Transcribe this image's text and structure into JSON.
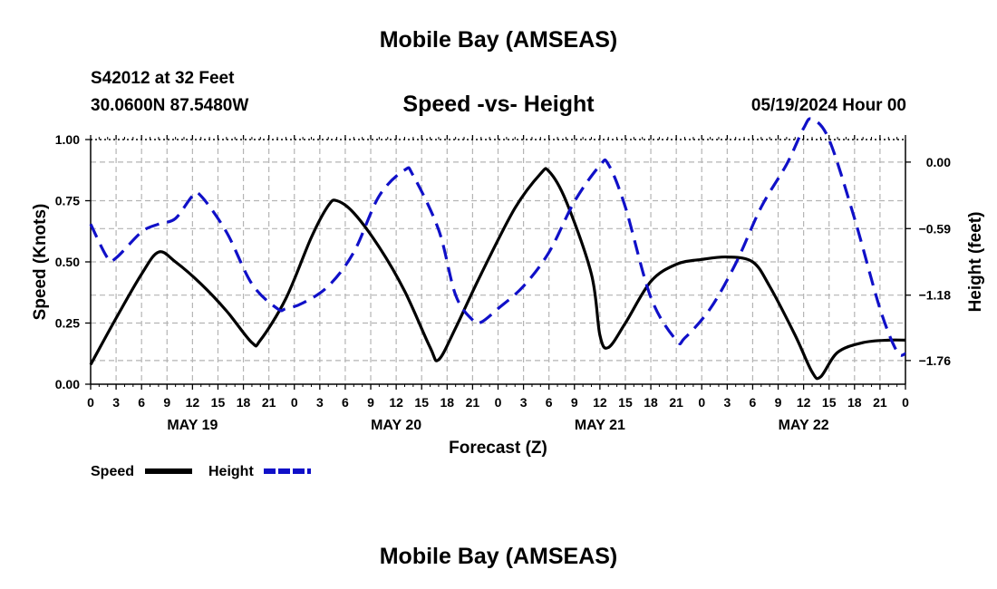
{
  "header": {
    "title": "Mobile Bay (AMSEAS)",
    "station": "S42012 at 32 Feet",
    "coords": "30.0600N  87.5480W",
    "subtitle": "Speed -vs- Height",
    "datetime": "05/19/2024 Hour 00"
  },
  "footer": {
    "title": "Mobile Bay (AMSEAS)"
  },
  "colors": {
    "speed": "#000000",
    "height": "#1010c8",
    "grid": "#b4b4b4"
  },
  "chart_data": {
    "type": "line",
    "title": "Speed -vs- Height",
    "xlabel": "Forecast (Z)",
    "ylabel": "Speed (Knots)",
    "y2label": "Height (feet)",
    "x_range": [
      0,
      96
    ],
    "ylim": [
      0,
      1
    ],
    "y2lim": [
      -1.97,
      0.2
    ],
    "y_ticks": [
      0,
      0.25,
      0.5,
      0.75,
      1.0
    ],
    "y_tick_labels": [
      "0.00",
      "0.25",
      "0.50",
      "0.75",
      "1.00"
    ],
    "y2_ticks": [
      0.0,
      -0.59,
      -1.18,
      -1.76
    ],
    "y2_tick_labels": [
      "0.00",
      "−0.59",
      "−1.18",
      "−1.76"
    ],
    "x_ticks": [
      0,
      3,
      6,
      9,
      12,
      15,
      18,
      21,
      24,
      27,
      30,
      33,
      36,
      39,
      42,
      45,
      48,
      51,
      54,
      57,
      60,
      63,
      66,
      69,
      72,
      75,
      78,
      81,
      84,
      87,
      90,
      93,
      96
    ],
    "x_tick_labels": [
      "0",
      "3",
      "6",
      "9",
      "12",
      "15",
      "18",
      "21",
      "0",
      "3",
      "6",
      "9",
      "12",
      "15",
      "18",
      "21",
      "0",
      "3",
      "6",
      "9",
      "12",
      "15",
      "18",
      "21",
      "0",
      "3",
      "6",
      "9",
      "12",
      "15",
      "18",
      "21",
      "0"
    ],
    "day_labels": [
      {
        "x": 12,
        "label": "MAY 19"
      },
      {
        "x": 36,
        "label": "MAY 20"
      },
      {
        "x": 60,
        "label": "MAY 21"
      },
      {
        "x": 84,
        "label": "MAY 22"
      }
    ],
    "legend": [
      {
        "name": "Speed",
        "style": "solid"
      },
      {
        "name": "Height",
        "style": "dashed"
      }
    ],
    "series": [
      {
        "name": "Speed",
        "axis": "left",
        "style": "solid",
        "points": [
          [
            0,
            0.08
          ],
          [
            3,
            0.27
          ],
          [
            6,
            0.45
          ],
          [
            8,
            0.54
          ],
          [
            10,
            0.5
          ],
          [
            13,
            0.41
          ],
          [
            16,
            0.3
          ],
          [
            19,
            0.17
          ],
          [
            20,
            0.18
          ],
          [
            23,
            0.35
          ],
          [
            26,
            0.6
          ],
          [
            28,
            0.73
          ],
          [
            29,
            0.75
          ],
          [
            31,
            0.7
          ],
          [
            34,
            0.56
          ],
          [
            37,
            0.38
          ],
          [
            40,
            0.15
          ],
          [
            41,
            0.1
          ],
          [
            43,
            0.23
          ],
          [
            46,
            0.45
          ],
          [
            50,
            0.72
          ],
          [
            53,
            0.86
          ],
          [
            54,
            0.87
          ],
          [
            56,
            0.75
          ],
          [
            59,
            0.45
          ],
          [
            60,
            0.2
          ],
          [
            61,
            0.15
          ],
          [
            63,
            0.25
          ],
          [
            66,
            0.42
          ],
          [
            69,
            0.49
          ],
          [
            72,
            0.51
          ],
          [
            75,
            0.52
          ],
          [
            78,
            0.5
          ],
          [
            80,
            0.4
          ],
          [
            83,
            0.2
          ],
          [
            85,
            0.05
          ],
          [
            86,
            0.03
          ],
          [
            88,
            0.13
          ],
          [
            91,
            0.17
          ],
          [
            94,
            0.18
          ],
          [
            96,
            0.18
          ]
        ]
      },
      {
        "name": "Height",
        "axis": "right",
        "style": "dashed",
        "points": [
          [
            0,
            -0.55
          ],
          [
            2,
            -0.85
          ],
          [
            3,
            -0.85
          ],
          [
            6,
            -0.62
          ],
          [
            8,
            -0.55
          ],
          [
            10,
            -0.5
          ],
          [
            12,
            -0.3
          ],
          [
            13,
            -0.3
          ],
          [
            16,
            -0.62
          ],
          [
            19,
            -1.08
          ],
          [
            22,
            -1.3
          ],
          [
            23,
            -1.3
          ],
          [
            25,
            -1.25
          ],
          [
            28,
            -1.1
          ],
          [
            31,
            -0.8
          ],
          [
            34,
            -0.3
          ],
          [
            37,
            -0.07
          ],
          [
            38,
            -0.12
          ],
          [
            41,
            -0.6
          ],
          [
            43,
            -1.18
          ],
          [
            45,
            -1.4
          ],
          [
            46,
            -1.42
          ],
          [
            48,
            -1.3
          ],
          [
            51,
            -1.1
          ],
          [
            54,
            -0.8
          ],
          [
            57,
            -0.35
          ],
          [
            60,
            -0.03
          ],
          [
            61,
            -0.02
          ],
          [
            63,
            -0.4
          ],
          [
            66,
            -1.2
          ],
          [
            69,
            -1.58
          ],
          [
            70,
            -1.56
          ],
          [
            73,
            -1.3
          ],
          [
            76,
            -0.9
          ],
          [
            79,
            -0.4
          ],
          [
            82,
            -0.02
          ],
          [
            84,
            0.3
          ],
          [
            85,
            0.38
          ],
          [
            87,
            0.2
          ],
          [
            90,
            -0.5
          ],
          [
            93,
            -1.3
          ],
          [
            95,
            -1.68
          ],
          [
            96,
            -1.7
          ]
        ]
      }
    ]
  }
}
